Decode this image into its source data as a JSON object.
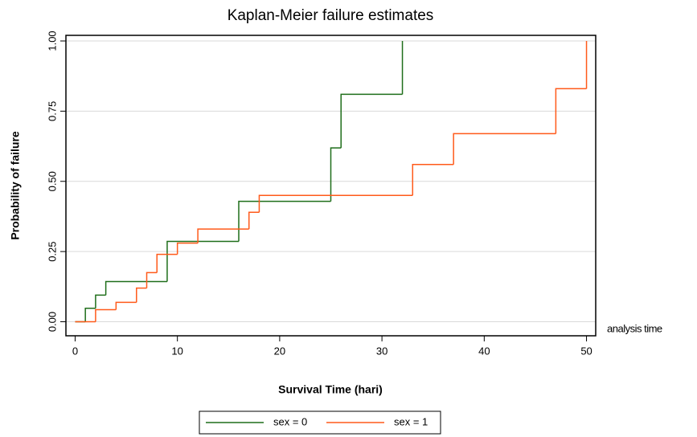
{
  "chart_data": {
    "type": "step",
    "title": "Kaplan-Meier failure estimates",
    "x_label": "Survival Time (hari)",
    "y_label": "Probability of failure",
    "x_note": "analysis time",
    "xlim": [
      -0.9,
      50.9
    ],
    "ylim": [
      -0.05,
      1.02
    ],
    "xticks": [
      0,
      10,
      20,
      30,
      40,
      50
    ],
    "yticks": [
      {
        "value": 0,
        "label": "0.00"
      },
      {
        "value": 0.25,
        "label": "0.25"
      },
      {
        "value": 0.5,
        "label": "0.50"
      },
      {
        "value": 0.75,
        "label": "0.75"
      },
      {
        "value": 1,
        "label": "1.00"
      }
    ],
    "grid": true,
    "legend": "bottom",
    "series": [
      {
        "name": "sex = 0",
        "color": "#1f6e1a",
        "x": [
          0,
          1,
          2,
          3,
          9,
          16,
          25,
          26,
          32
        ],
        "values": [
          0,
          0.048,
          0.095,
          0.143,
          0.286,
          0.429,
          0.619,
          0.81,
          1.0
        ]
      },
      {
        "name": "sex = 1",
        "color": "#ff5a1a",
        "x": [
          0,
          2,
          4,
          6,
          7,
          8,
          10,
          12,
          17,
          18,
          33,
          37,
          47,
          50
        ],
        "values": [
          0,
          0.043,
          0.069,
          0.12,
          0.175,
          0.24,
          0.28,
          0.33,
          0.39,
          0.45,
          0.56,
          0.67,
          0.83,
          1.0
        ]
      }
    ]
  }
}
